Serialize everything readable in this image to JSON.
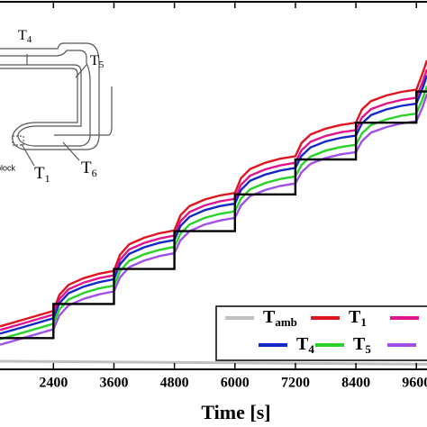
{
  "chart_data": {
    "type": "line",
    "xlabel": "Time [s]",
    "xlim": [
      1340,
      9810
    ],
    "xticks": [
      2400,
      3600,
      4800,
      6000,
      7200,
      8400,
      9600
    ],
    "ylim": [
      0,
      100
    ],
    "series": [
      {
        "name": "T",
        "subscript": "amb",
        "color": "#c0c0c0",
        "x": [
          1340,
          9810
        ],
        "values": [
          2.2,
          1.4
        ]
      },
      {
        "name": "T",
        "subscript": "1",
        "color": "#e0141e",
        "x": [
          1340,
          1800,
          2400,
          2520,
          2700,
          3000,
          3300,
          3600,
          3720,
          3900,
          4200,
          4500,
          4800,
          4920,
          5100,
          5400,
          5700,
          6000,
          6120,
          6300,
          6600,
          6900,
          7200,
          7320,
          7500,
          7800,
          8100,
          8400,
          8520,
          8700,
          9000,
          9300,
          9600,
          9720,
          9810
        ],
        "values": [
          11.7,
          13.5,
          15.9,
          20.3,
          23.0,
          24.8,
          26.0,
          26.8,
          31.2,
          34.0,
          35.8,
          37.0,
          37.8,
          41.9,
          44.4,
          46.2,
          47.3,
          48.0,
          52.0,
          54.5,
          56.2,
          57.3,
          58.0,
          61.6,
          63.9,
          65.5,
          66.5,
          67.1,
          70.7,
          73.0,
          74.5,
          75.5,
          76.1,
          80.5,
          84.1
        ]
      },
      {
        "color": "#e0148c",
        "x": [
          1340,
          1800,
          2400,
          2520,
          2700,
          3000,
          3300,
          3600,
          3720,
          3900,
          4200,
          4500,
          4800,
          4920,
          5100,
          5400,
          5700,
          6000,
          6120,
          6300,
          6600,
          6900,
          7200,
          7320,
          7500,
          7800,
          8100,
          8400,
          8520,
          8700,
          9000,
          9300,
          9600,
          9720,
          9810
        ],
        "values": [
          10.7,
          12.5,
          14.9,
          19.1,
          21.8,
          23.6,
          24.8,
          25.6,
          29.8,
          32.6,
          34.4,
          35.6,
          36.4,
          40.3,
          42.8,
          44.6,
          45.7,
          46.4,
          50.2,
          52.7,
          54.4,
          55.5,
          56.2,
          59.6,
          61.9,
          63.5,
          64.5,
          65.1,
          68.5,
          70.8,
          72.3,
          73.3,
          73.9,
          78.1,
          81.7
        ]
      },
      {
        "name": "T",
        "subscript": "4",
        "color": "#1428c8",
        "x": [
          1340,
          1800,
          2400,
          2520,
          2700,
          3000,
          3300,
          3600,
          3720,
          3900,
          4200,
          4500,
          4800,
          4920,
          5100,
          5400,
          5700,
          6000,
          6120,
          6300,
          6600,
          6900,
          7200,
          7320,
          7500,
          7800,
          8100,
          8400,
          8520,
          8700,
          9000,
          9300,
          9600,
          9720,
          9810
        ],
        "values": [
          9.7,
          11.5,
          13.9,
          18.0,
          20.7,
          22.5,
          23.7,
          24.5,
          28.6,
          31.4,
          33.2,
          34.4,
          35.2,
          39.0,
          41.5,
          43.3,
          44.4,
          45.1,
          48.8,
          51.3,
          53.0,
          54.1,
          54.8,
          58.1,
          60.4,
          62.0,
          63.0,
          63.6,
          66.9,
          69.2,
          70.7,
          71.7,
          72.3,
          76.4,
          80.0
        ]
      },
      {
        "name": "T",
        "subscript": "5",
        "color": "#28d228",
        "x": [
          1340,
          1800,
          2400,
          2520,
          2700,
          3000,
          3300,
          3600,
          3720,
          3900,
          4200,
          4500,
          4800,
          4920,
          5100,
          5400,
          5700,
          6000,
          6120,
          6300,
          6600,
          6900,
          7200,
          7320,
          7500,
          7800,
          8100,
          8400,
          8520,
          8700,
          9000,
          9300,
          9600,
          9720,
          9810
        ],
        "values": [
          8.2,
          10.0,
          12.4,
          16.3,
          19.0,
          20.8,
          22.0,
          22.8,
          26.7,
          29.5,
          31.3,
          32.5,
          33.3,
          36.9,
          39.4,
          41.2,
          42.3,
          43.0,
          46.5,
          49.0,
          50.7,
          51.8,
          52.5,
          55.6,
          57.9,
          59.5,
          60.5,
          61.1,
          64.2,
          66.5,
          68.0,
          69.0,
          69.6,
          73.5,
          77.1
        ]
      },
      {
        "color": "#a050e6",
        "x": [
          1340,
          1800,
          2400,
          2520,
          2700,
          3000,
          3300,
          3600,
          3720,
          3900,
          4200,
          4500,
          4800,
          4920,
          5100,
          5400,
          5700,
          6000,
          6120,
          6300,
          6600,
          6900,
          7200,
          7320,
          7500,
          7800,
          8100,
          8400,
          8520,
          8700,
          9000,
          9300,
          9600,
          9720,
          9810
        ],
        "values": [
          6.7,
          8.5,
          10.9,
          14.7,
          17.4,
          19.2,
          20.4,
          21.2,
          25.0,
          27.8,
          29.6,
          30.8,
          31.6,
          35.1,
          37.6,
          39.4,
          40.5,
          41.2,
          44.6,
          47.1,
          48.8,
          49.9,
          50.6,
          53.6,
          55.9,
          57.5,
          58.5,
          59.1,
          62.1,
          64.4,
          65.9,
          66.9,
          67.5,
          71.3,
          74.9
        ]
      },
      {
        "color": "#000000",
        "x": [
          1340,
          2400,
          2400,
          3600,
          3600,
          4800,
          4800,
          6000,
          6000,
          7200,
          7200,
          8400,
          8400,
          9600,
          9600,
          9810
        ],
        "values": [
          8.5,
          8.5,
          17.8,
          17.8,
          27.3,
          27.3,
          37.6,
          37.6,
          47.6,
          47.6,
          57.1,
          57.1,
          67.1,
          67.1,
          75.6,
          75.6
        ]
      }
    ]
  },
  "inset": {
    "labels": [
      {
        "main": "T",
        "sub": "4"
      },
      {
        "main": "T",
        "sub": "5"
      },
      {
        "main": "T",
        "sub": "1"
      },
      {
        "main": "T",
        "sub": "6"
      },
      {
        "main": "block"
      }
    ]
  }
}
